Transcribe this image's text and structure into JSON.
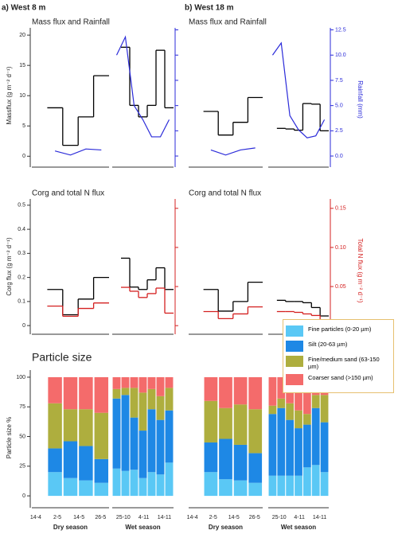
{
  "column_titles": [
    "a) West 8 m",
    "b) West 18 m"
  ],
  "chart_data": [
    {
      "type": "step",
      "title": "Mass flux and Rainfall",
      "ylabel": "Massflux (g m⁻² d⁻¹)",
      "y2label": "Rainfall (mm)",
      "ylim": [
        -1.8,
        21.2
      ],
      "yticks": [
        0,
        5,
        10,
        15,
        20
      ],
      "y2lim": [
        -1.1,
        12.7
      ],
      "y2ticks": [
        {
          "value": 0,
          "label": "0.0"
        },
        2.5,
        {
          "value": 5,
          "label": "5.0"
        },
        7.5,
        {
          "value": 10,
          "label": "10.0"
        },
        12.5
      ],
      "series": [
        {
          "style": "step",
          "color": "#000000",
          "values": [
            [
              null,
              8,
              1.8,
              6.5,
              13.3
            ],
            [
              null,
              18,
              8.4,
              6.5,
              8.4,
              17.5,
              8
            ],
            [
              null,
              7.4,
              3.5,
              5.6,
              9.7
            ],
            [
              null,
              4.6,
              4.5,
              4.3,
              8.7,
              8.6,
              4.2
            ]
          ]
        },
        {
          "style": "line",
          "axis": "y2",
          "color": "#2b2bd9",
          "values": [
            [
              null,
              0.5,
              0.1,
              0.7,
              0.6
            ],
            [
              10,
              11.8,
              5,
              3.6,
              1.9,
              1.9,
              3.6
            ],
            [
              null,
              0.6,
              0.1,
              0.6,
              0.8
            ],
            [
              10,
              11.2,
              4,
              2.6,
              1.8,
              2,
              3.6
            ]
          ]
        }
      ]
    },
    {
      "type": "step",
      "title": "Corg and total N flux",
      "ylabel": "Corg flux (g m⁻² d⁻¹)",
      "y2label": "Total N flux (g m⁻² d⁻¹)",
      "ylim": [
        -0.036,
        0.526
      ],
      "yticks": [
        0,
        0.1,
        0.2,
        0.3,
        0.4,
        0.5
      ],
      "y2lim": [
        -0.011,
        0.162
      ],
      "y2ticks": [
        0,
        0.05,
        {
          "value": 0.1,
          "label": "0.10"
        },
        0.15
      ],
      "series": [
        {
          "style": "step",
          "color": "#000000",
          "values": [
            [
              null,
              0.15,
              0.045,
              0.11,
              0.2
            ],
            [
              null,
              0.28,
              0.16,
              0.15,
              0.19,
              0.24,
              0.15
            ],
            [
              null,
              0.15,
              0.06,
              0.1,
              0.18
            ],
            [
              null,
              0.105,
              0.1,
              0.1,
              0.095,
              0.075,
              0.04
            ]
          ]
        },
        {
          "style": "step",
          "axis": "y2",
          "color": "#d42020",
          "values": [
            [
              null,
              0.025,
              0.012,
              0.022,
              0.029
            ],
            [
              null,
              0.049,
              0.044,
              0.036,
              0.041,
              0.048,
              0.016
            ],
            [
              null,
              0.018,
              0.009,
              0.015,
              0.024
            ],
            [
              null,
              0.018,
              0.018,
              0.017,
              0.015,
              0.013,
              0.006
            ]
          ]
        }
      ]
    },
    {
      "type": "stacked-bar",
      "title": "Particle size",
      "ylabel": "Particle size %",
      "ylim": [
        -10,
        106
      ],
      "yticks": [
        0,
        25,
        50,
        75,
        100
      ],
      "seasons": [
        "Dry season",
        "Wet season"
      ],
      "xtick_labels": [
        [
          "14-4",
          "2-5",
          "14-5",
          "26-5"
        ],
        [
          "25-10",
          "4-11",
          "14-11"
        ]
      ],
      "series": [
        {
          "name": "Fine particles (0-20 µm)",
          "color": "#5ac8f5",
          "values": [
            [
              null,
              20,
              15,
              13,
              11
            ],
            [
              23,
              21,
              22,
              15,
              20,
              18,
              28
            ],
            [
              null,
              20,
              14,
              13,
              11
            ],
            [
              17,
              17,
              17,
              17,
              24,
              26,
              20
            ]
          ]
        },
        {
          "name": "Silt (20-63 µm)",
          "color": "#1e88e5",
          "values": [
            [
              null,
              20,
              31,
              29,
              20
            ],
            [
              59,
              64,
              44,
              40,
              53,
              46,
              44
            ],
            [
              null,
              25,
              34,
              30,
              25
            ],
            [
              52,
              57,
              47,
              40,
              36,
              48,
              42
            ]
          ]
        },
        {
          "name": "Fine/medium sand (63-150 µm)",
          "color": "#aeae3e",
          "values": [
            [
              null,
              38,
              27,
              31,
              39
            ],
            [
              8,
              6,
              25,
              32,
              17,
              20,
              19
            ],
            [
              null,
              35,
              26,
              34,
              37
            ],
            [
              7,
              8,
              14,
              15,
              9,
              11,
              23
            ]
          ]
        },
        {
          "name": "Coarser sand (>150 µm)",
          "color": "#f46b6b",
          "values": [
            [
              null,
              22,
              27,
              27,
              30
            ],
            [
              10,
              9,
              9,
              13,
              10,
              16,
              9
            ],
            [
              null,
              20,
              26,
              23,
              27
            ],
            [
              24,
              18,
              22,
              28,
              31,
              15,
              15
            ]
          ]
        }
      ]
    }
  ]
}
